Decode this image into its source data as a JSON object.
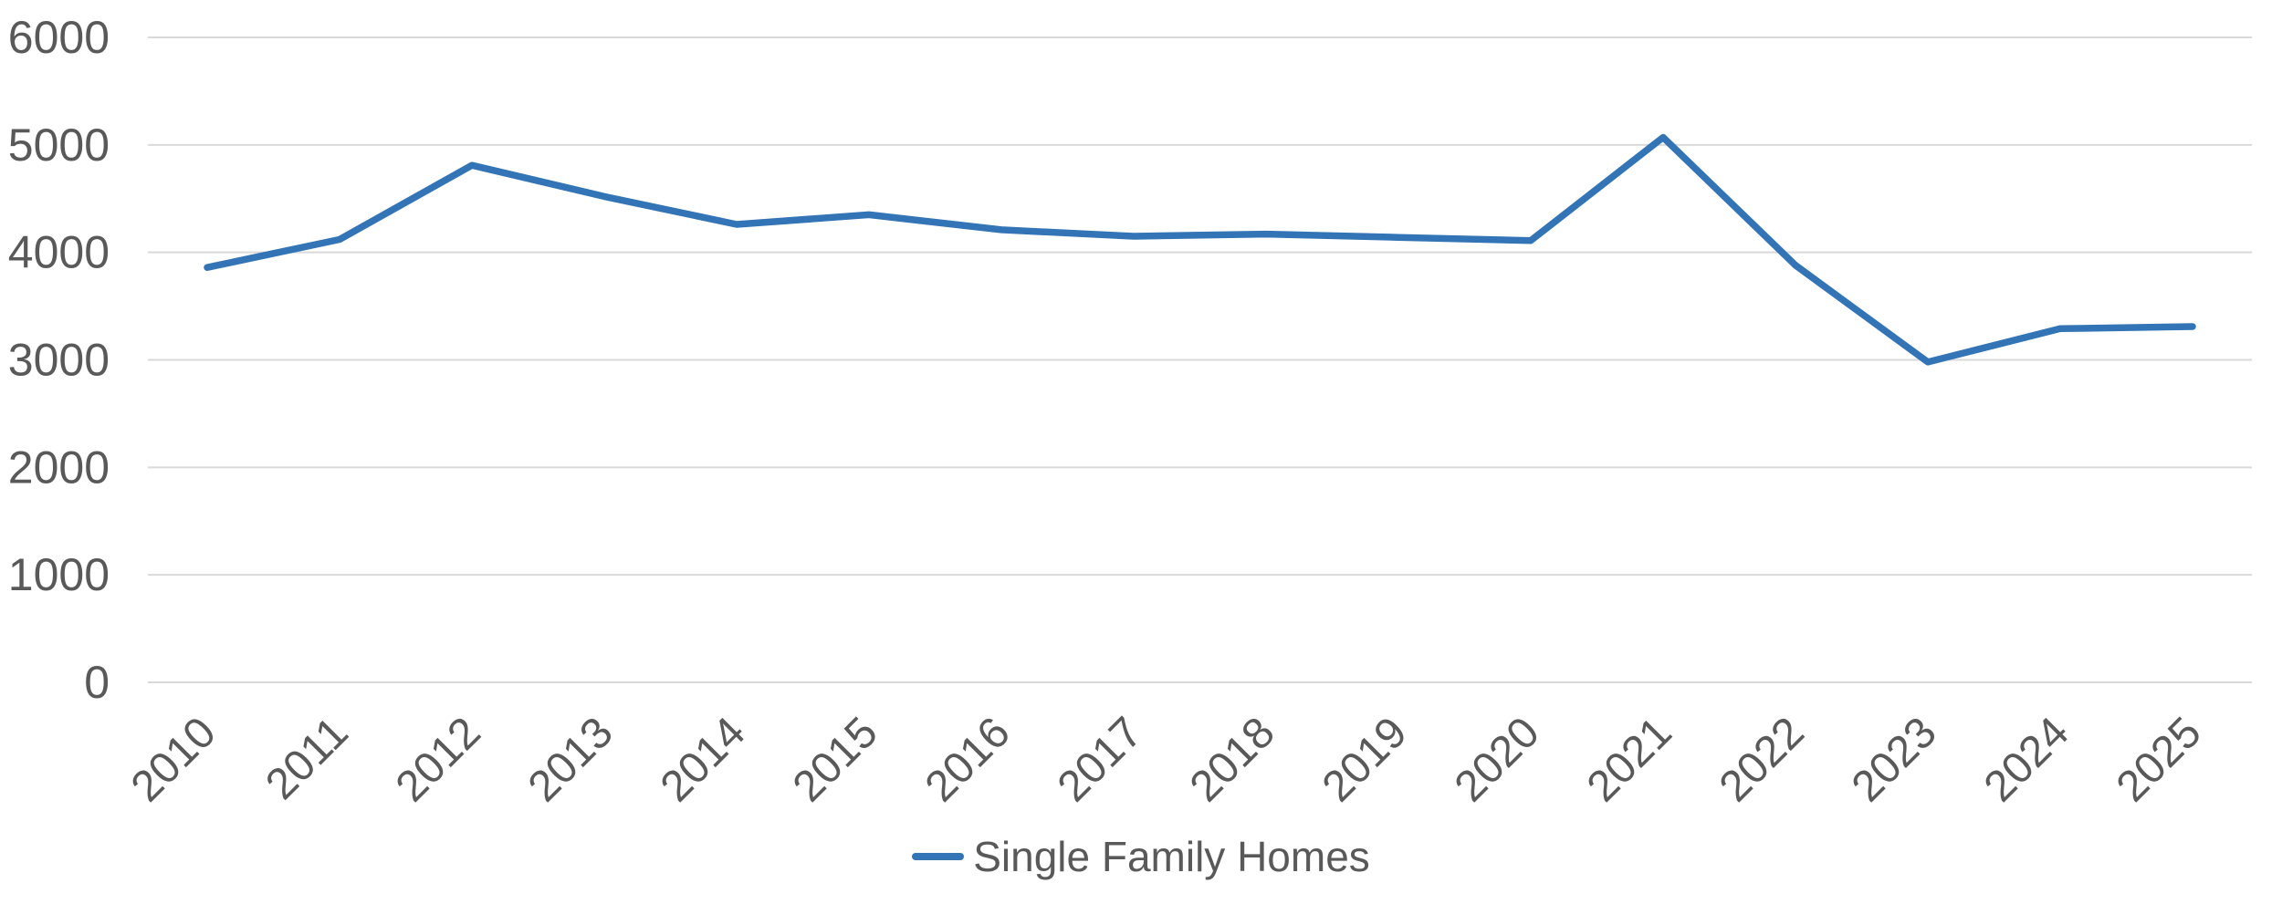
{
  "colors": {
    "line": "#3274B5",
    "grid": "#D9D9D9",
    "axis_text": "#595959",
    "background": "#FFFFFF"
  },
  "legend": {
    "label": "Single Family Homes"
  },
  "chart_data": {
    "type": "line",
    "title": "",
    "xlabel": "",
    "ylabel": "",
    "categories": [
      "2010",
      "2011",
      "2012",
      "2013",
      "2014",
      "2015",
      "2016",
      "2017",
      "2018",
      "2019",
      "2020",
      "2021",
      "2022",
      "2023",
      "2024",
      "2025"
    ],
    "series": [
      {
        "name": "Single Family Homes",
        "values": [
          3860,
          4120,
          4810,
          4520,
          4260,
          4350,
          4210,
          4150,
          4170,
          4140,
          4110,
          5070,
          3880,
          2980,
          3290,
          3310
        ]
      }
    ],
    "ylim": [
      0,
      6000
    ],
    "ytick_values": [
      0,
      1000,
      2000,
      3000,
      4000,
      5000,
      6000
    ],
    "ytick_labels": [
      "0",
      "1000",
      "2000",
      "3000",
      "4000",
      "5000",
      "6000"
    ],
    "grid": "horizontal",
    "legend_position": "bottom",
    "x_label_rotation_deg": -45
  }
}
